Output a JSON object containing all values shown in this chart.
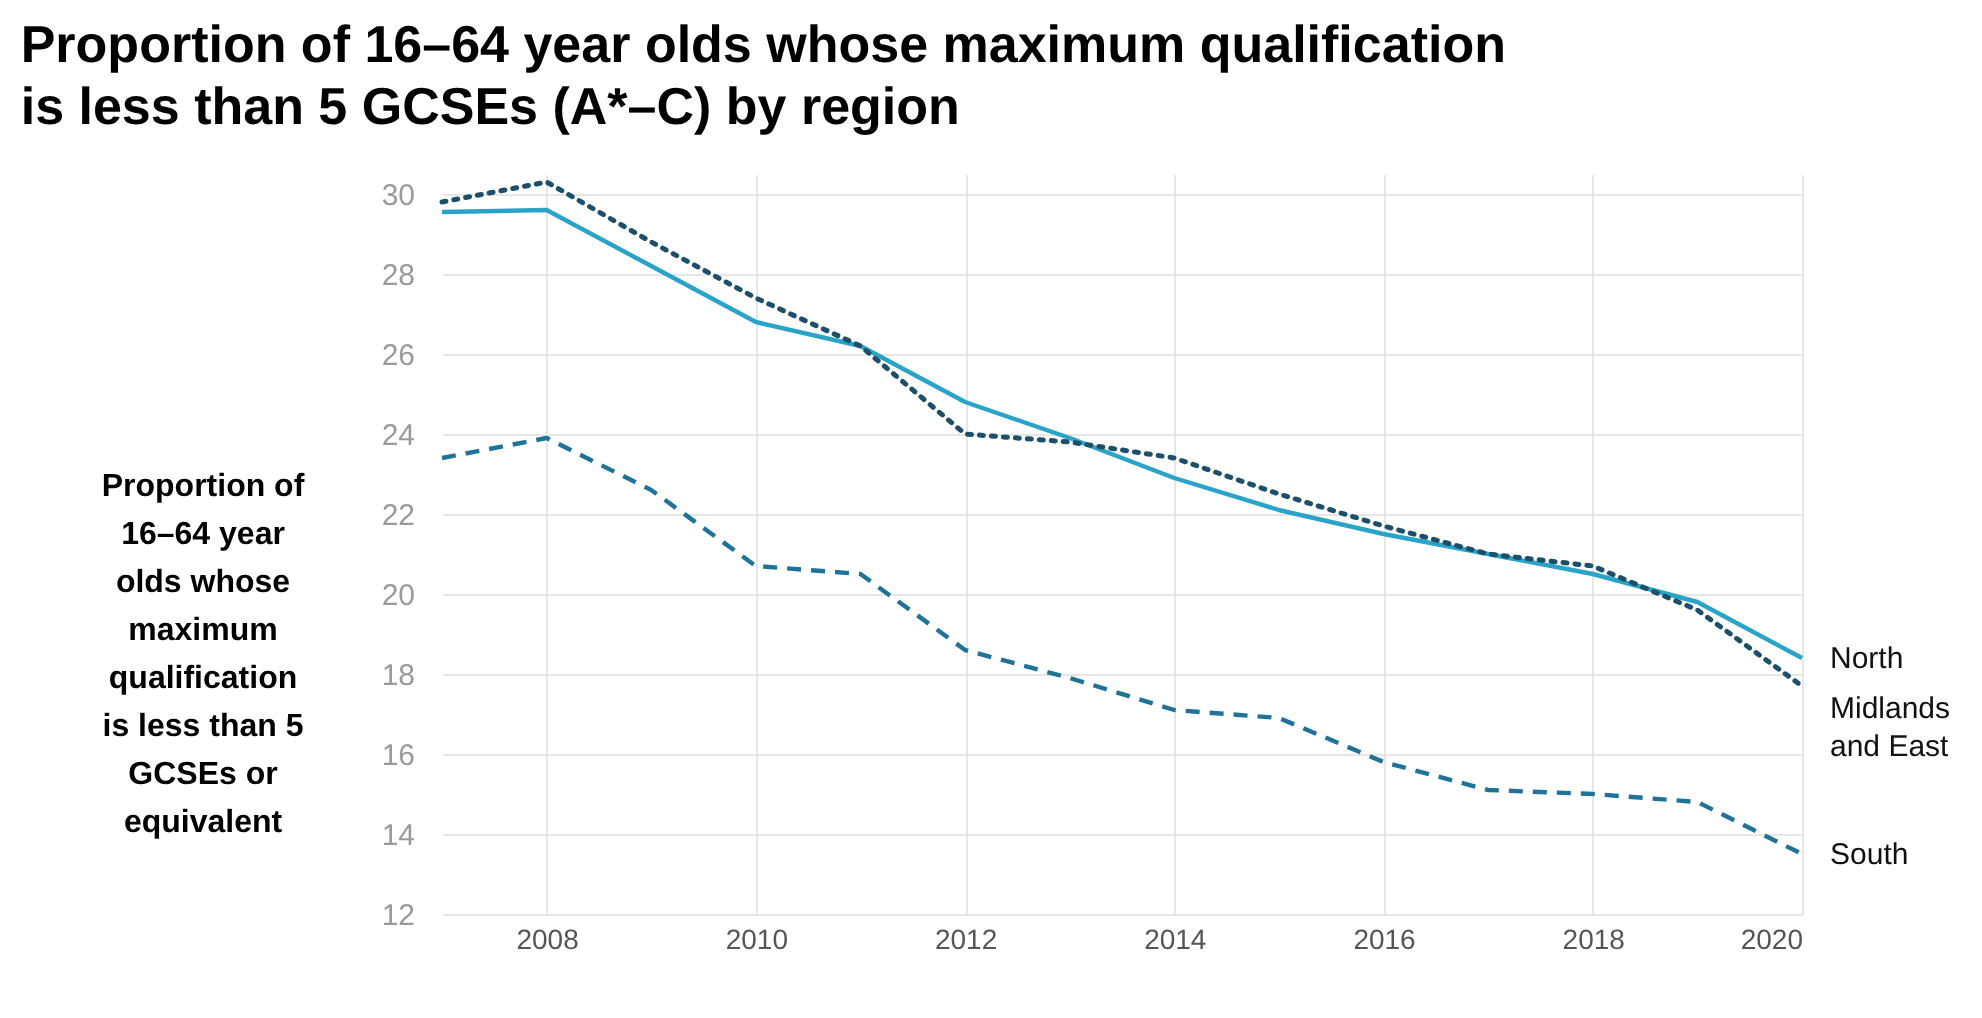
{
  "chart_data": {
    "type": "line",
    "title": "Proportion of 16–64 year olds whose maximum qualification is less than 5 GCSEs (A*–C) by region",
    "ylabel": "Proportion of 16–64 year olds whose maximum qualification is less than 5 GCSEs or equivalent",
    "x": [
      2007,
      2008,
      2009,
      2010,
      2011,
      2012,
      2013,
      2014,
      2015,
      2016,
      2017,
      2018,
      2019,
      2020
    ],
    "series": [
      {
        "name": "North",
        "color": "#2aa3c9",
        "line_style": "solid",
        "values": [
          29.55,
          29.6,
          28.2,
          26.8,
          26.2,
          24.8,
          23.9,
          22.9,
          22.1,
          21.5,
          21.0,
          20.5,
          19.8,
          18.4
        ]
      },
      {
        "name": "Midlands and East",
        "color": "#1c4f6a",
        "line_style": "dotted",
        "values": [
          29.8,
          30.3,
          28.8,
          27.4,
          26.2,
          24.0,
          23.8,
          23.4,
          22.5,
          21.7,
          21.0,
          20.7,
          19.6,
          17.7
        ]
      },
      {
        "name": "South",
        "color": "#1f7399",
        "line_style": "dashed",
        "values": [
          23.4,
          23.9,
          22.6,
          20.7,
          20.5,
          18.6,
          17.9,
          17.1,
          16.9,
          15.8,
          15.1,
          15.0,
          14.8,
          13.5
        ]
      }
    ],
    "xlim": [
      2007,
      2020
    ],
    "xticks": [
      2008,
      2010,
      2012,
      2014,
      2016,
      2018,
      2020
    ],
    "ylim": [
      12,
      30.5
    ],
    "yticks": [
      12,
      14,
      16,
      18,
      20,
      22,
      24,
      26,
      28,
      30
    ],
    "grid": true,
    "legend": false,
    "marker": "none"
  }
}
